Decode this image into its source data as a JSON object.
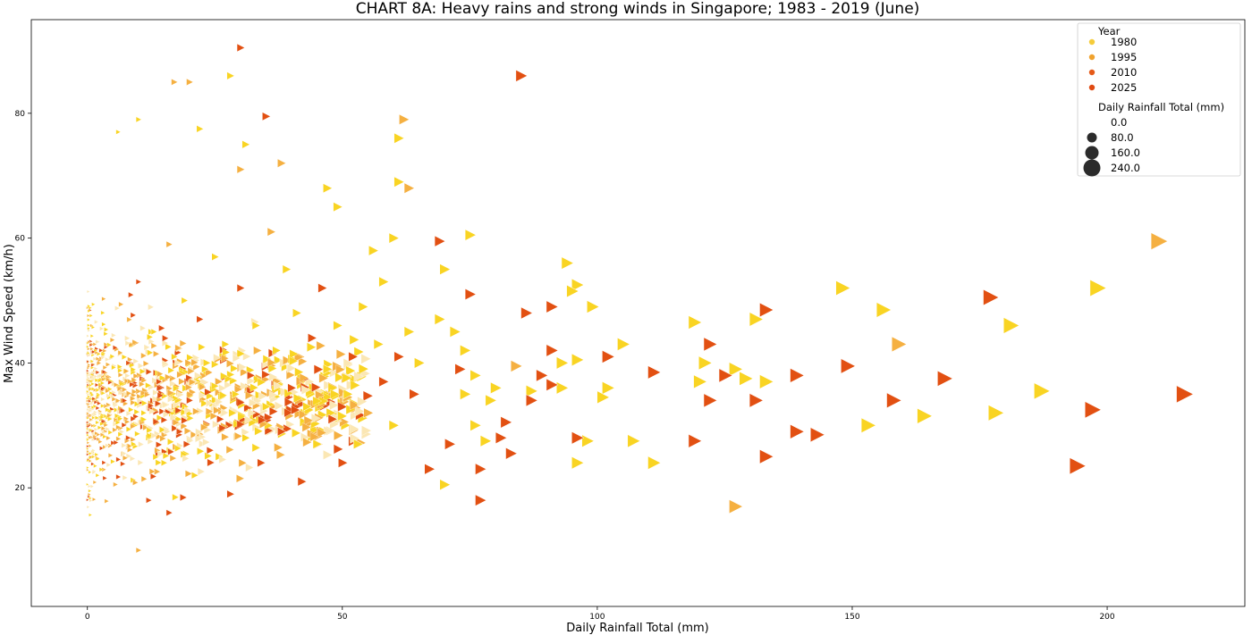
{
  "chart_data": {
    "type": "scatter",
    "title": "CHART 8A: Heavy rains and strong winds in Singapore; 1983 - 2019 (June)",
    "xlabel": "Daily Rainfall Total (mm)",
    "ylabel": "Max Wind Speed (km/h)",
    "xlim": [
      -11,
      227
    ],
    "ylim": [
      1,
      95
    ],
    "xticks": [
      0,
      50,
      100,
      150,
      200
    ],
    "yticks": [
      20,
      40,
      60,
      80
    ],
    "grid": false,
    "legend_position": "top-right",
    "marker": "triangle-right",
    "hue_legend": {
      "title": "Year",
      "entries": [
        {
          "label": "1980",
          "color": "#f5cc3a"
        },
        {
          "label": "1995",
          "color": "#f0a22e"
        },
        {
          "label": "2010",
          "color": "#e55a18"
        },
        {
          "label": "2025",
          "color": "#e04a12"
        }
      ]
    },
    "size_legend": {
      "title": "Daily Rainfall Total (mm)",
      "entries": [
        {
          "label": "0.0",
          "value": 0
        },
        {
          "label": "80.0",
          "value": 80
        },
        {
          "label": "160.0",
          "value": 160
        },
        {
          "label": "240.0",
          "value": 240
        }
      ]
    },
    "colors": {
      "yellow": "#f9d423",
      "light_orange": "#f5b041",
      "dark_orange": "#e25012",
      "pale": "#fbe7b4"
    },
    "points": [
      [
        215,
        35,
        "d"
      ],
      [
        210,
        59.5,
        "o"
      ],
      [
        198,
        52,
        "y"
      ],
      [
        197,
        32.5,
        "d"
      ],
      [
        194,
        23.5,
        "d"
      ],
      [
        187,
        35.5,
        "y"
      ],
      [
        181,
        46,
        "y"
      ],
      [
        178,
        32,
        "y"
      ],
      [
        177,
        50.5,
        "d"
      ],
      [
        168,
        37.5,
        "d"
      ],
      [
        164,
        31.5,
        "y"
      ],
      [
        159,
        43,
        "o"
      ],
      [
        158,
        34,
        "d"
      ],
      [
        156,
        48.5,
        "y"
      ],
      [
        153,
        30,
        "y"
      ],
      [
        149,
        39.5,
        "d"
      ],
      [
        148,
        52,
        "y"
      ],
      [
        143,
        28.5,
        "d"
      ],
      [
        139,
        38,
        "d"
      ],
      [
        139,
        29,
        "d"
      ],
      [
        133,
        48.5,
        "d"
      ],
      [
        133,
        25,
        "d"
      ],
      [
        133,
        37,
        "y"
      ],
      [
        131,
        34,
        "d"
      ],
      [
        131,
        47,
        "y"
      ],
      [
        129,
        37.5,
        "y"
      ],
      [
        127,
        17,
        "o"
      ],
      [
        127,
        39,
        "y"
      ],
      [
        125,
        38,
        "d"
      ],
      [
        122,
        34,
        "d"
      ],
      [
        122,
        43,
        "d"
      ],
      [
        121,
        40,
        "y"
      ],
      [
        120,
        37,
        "y"
      ],
      [
        119,
        46.5,
        "y"
      ],
      [
        119,
        27.5,
        "d"
      ],
      [
        111,
        38.5,
        "d"
      ],
      [
        111,
        24,
        "y"
      ],
      [
        107,
        27.5,
        "y"
      ],
      [
        105,
        43,
        "y"
      ],
      [
        102,
        41,
        "d"
      ],
      [
        102,
        36,
        "y"
      ],
      [
        101,
        34.5,
        "y"
      ],
      [
        99,
        49,
        "y"
      ],
      [
        98,
        27.5,
        "y"
      ],
      [
        96,
        52.5,
        "y"
      ],
      [
        96,
        40.5,
        "y"
      ],
      [
        96,
        24,
        "y"
      ],
      [
        96,
        28,
        "d"
      ],
      [
        95,
        51.5,
        "y"
      ],
      [
        94,
        56,
        "y"
      ],
      [
        93,
        40,
        "y"
      ],
      [
        93,
        36,
        "y"
      ],
      [
        91,
        36.5,
        "d"
      ],
      [
        91,
        42,
        "d"
      ],
      [
        91,
        49,
        "d"
      ],
      [
        89,
        38,
        "d"
      ],
      [
        87,
        35.5,
        "y"
      ],
      [
        87,
        34,
        "d"
      ],
      [
        86,
        48,
        "d"
      ],
      [
        85,
        86,
        "d"
      ],
      [
        84,
        39.5,
        "o"
      ],
      [
        83,
        25.5,
        "d"
      ],
      [
        82,
        30.5,
        "d"
      ],
      [
        81,
        28,
        "d"
      ],
      [
        80,
        36,
        "y"
      ],
      [
        79,
        34,
        "y"
      ],
      [
        78,
        27.5,
        "y"
      ],
      [
        77,
        18,
        "d"
      ],
      [
        77,
        23,
        "d"
      ],
      [
        76,
        30,
        "y"
      ],
      [
        76,
        38,
        "y"
      ],
      [
        75,
        60.5,
        "y"
      ],
      [
        75,
        51,
        "d"
      ],
      [
        74,
        42,
        "y"
      ],
      [
        74,
        35,
        "y"
      ],
      [
        73,
        39,
        "d"
      ],
      [
        72,
        45,
        "y"
      ],
      [
        71,
        27,
        "d"
      ],
      [
        70,
        20.5,
        "y"
      ],
      [
        70,
        55,
        "y"
      ],
      [
        69,
        59.5,
        "d"
      ],
      [
        69,
        47,
        "y"
      ],
      [
        62,
        79,
        "o"
      ],
      [
        61,
        76,
        "y"
      ],
      [
        61,
        69,
        "y"
      ],
      [
        63,
        68,
        "o"
      ],
      [
        60,
        60,
        "y"
      ],
      [
        56,
        58,
        "y"
      ],
      [
        58,
        53,
        "y"
      ],
      [
        47,
        68,
        "y"
      ],
      [
        49,
        65,
        "y"
      ],
      [
        35,
        79.5,
        "d"
      ],
      [
        30,
        90.5,
        "d"
      ],
      [
        28,
        86,
        "y"
      ],
      [
        38,
        72,
        "o"
      ],
      [
        30,
        71,
        "o"
      ],
      [
        31,
        75,
        "y"
      ],
      [
        22,
        77.5,
        "y"
      ],
      [
        20,
        85,
        "o"
      ],
      [
        17,
        85,
        "o"
      ],
      [
        10,
        79,
        "y"
      ],
      [
        6,
        77,
        "y"
      ],
      [
        10,
        10,
        "o"
      ],
      [
        16,
        16,
        "d"
      ],
      [
        67,
        23,
        "d"
      ],
      [
        65,
        40,
        "y"
      ],
      [
        64,
        35,
        "d"
      ],
      [
        63,
        45,
        "y"
      ],
      [
        61,
        41,
        "d"
      ],
      [
        60,
        30,
        "y"
      ],
      [
        58,
        37,
        "d"
      ],
      [
        57,
        43,
        "y"
      ],
      [
        55,
        32,
        "o"
      ],
      [
        54,
        49,
        "y"
      ],
      [
        53,
        27,
        "y"
      ],
      [
        52,
        41,
        "d"
      ],
      [
        51,
        35,
        "y"
      ],
      [
        50,
        24,
        "d"
      ],
      [
        49,
        46,
        "y"
      ],
      [
        48,
        31,
        "d"
      ],
      [
        47,
        39,
        "y"
      ],
      [
        46,
        52,
        "d"
      ],
      [
        45,
        27,
        "y"
      ],
      [
        44,
        44,
        "d"
      ],
      [
        43,
        33,
        "y"
      ],
      [
        42,
        21,
        "d"
      ],
      [
        41,
        48,
        "y"
      ],
      [
        40,
        36,
        "d"
      ],
      [
        39,
        55,
        "y"
      ],
      [
        38,
        29,
        "d"
      ],
      [
        37,
        42,
        "y"
      ],
      [
        36,
        61,
        "o"
      ],
      [
        35,
        33,
        "y"
      ],
      [
        34,
        24,
        "d"
      ],
      [
        33,
        46,
        "y"
      ],
      [
        32,
        38,
        "d"
      ],
      [
        31,
        28,
        "y"
      ],
      [
        30,
        52,
        "d"
      ],
      [
        29,
        35,
        "y"
      ],
      [
        28,
        19,
        "d"
      ],
      [
        27,
        43,
        "y"
      ],
      [
        26,
        31,
        "d"
      ],
      [
        25,
        57,
        "y"
      ],
      [
        24,
        26,
        "d"
      ],
      [
        23,
        39,
        "y"
      ],
      [
        22,
        47,
        "d"
      ],
      [
        21,
        22,
        "y"
      ],
      [
        20,
        34,
        "d"
      ],
      [
        19,
        50,
        "y"
      ],
      [
        18,
        29,
        "d"
      ],
      [
        17,
        41,
        "y"
      ],
      [
        16,
        59,
        "o"
      ],
      [
        15,
        24,
        "y"
      ],
      [
        14,
        37,
        "d"
      ],
      [
        13,
        45,
        "y"
      ],
      [
        12,
        18,
        "d"
      ],
      [
        11,
        32,
        "y"
      ],
      [
        10,
        53,
        "d"
      ],
      [
        9,
        27,
        "y"
      ],
      [
        8,
        40,
        "d"
      ]
    ]
  }
}
